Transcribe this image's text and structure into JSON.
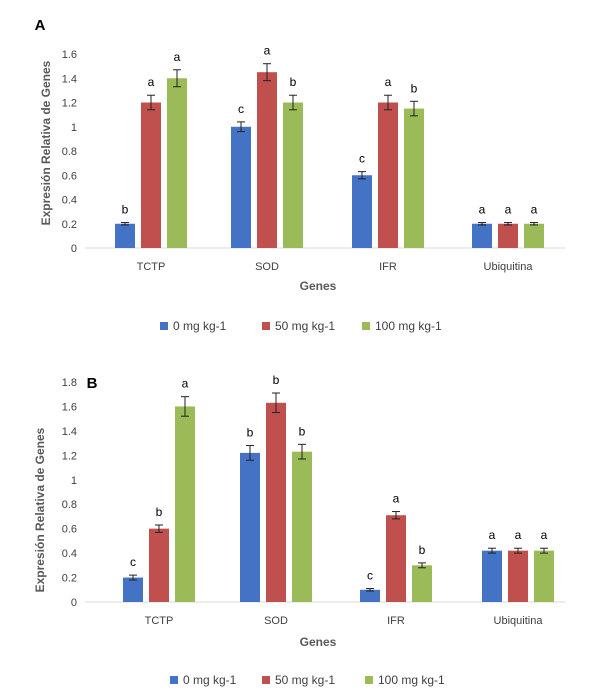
{
  "chart_data": [
    {
      "type": "bar",
      "panel_label": "A",
      "categories": [
        "TCTP",
        "SOD",
        "IFR",
        "Ubiquitina"
      ],
      "xlabel": "Genes",
      "ylabel": "Expresión Relativa de Genes",
      "ylim": [
        0,
        1.6
      ],
      "yticks": [
        "0",
        "0.2",
        "0.4",
        "0.6",
        "0.8",
        "1",
        "1.2",
        "1.4",
        "1.6"
      ],
      "grid": false,
      "legend_position": "bottom",
      "series": [
        {
          "name": "0 mg kg-1",
          "color": "#4472c4",
          "values": [
            0.2,
            1.0,
            0.6,
            0.2
          ],
          "errors": [
            0.01,
            0.04,
            0.03,
            0.01
          ],
          "letters": [
            "b",
            "c",
            "c",
            "a"
          ]
        },
        {
          "name": "50 mg kg-1",
          "color": "#c0504d",
          "values": [
            1.2,
            1.45,
            1.2,
            0.2
          ],
          "errors": [
            0.06,
            0.07,
            0.06,
            0.01
          ],
          "letters": [
            "a",
            "a",
            "a",
            "a"
          ]
        },
        {
          "name": "100 mg kg-1",
          "color": "#9bbb59",
          "values": [
            1.4,
            1.2,
            1.15,
            0.2
          ],
          "errors": [
            0.07,
            0.06,
            0.06,
            0.01
          ],
          "letters": [
            "a",
            "b",
            "b",
            "a"
          ]
        }
      ]
    },
    {
      "type": "bar",
      "panel_label": "B",
      "categories": [
        "TCTP",
        "SOD",
        "IFR",
        "Ubiquitina"
      ],
      "xlabel": "Genes",
      "ylabel": "Expresión Relativa de Genes",
      "ylim": [
        0,
        1.8
      ],
      "yticks": [
        "0",
        "0.2",
        "0.4",
        "0.6",
        "0.8",
        "1",
        "1.2",
        "1.4",
        "1.6",
        "1.8"
      ],
      "grid": false,
      "legend_position": "bottom",
      "series": [
        {
          "name": "0 mg kg-1",
          "color": "#4472c4",
          "values": [
            0.2,
            1.22,
            0.1,
            0.42
          ],
          "errors": [
            0.02,
            0.06,
            0.01,
            0.02
          ],
          "letters": [
            "c",
            "b",
            "c",
            "a"
          ]
        },
        {
          "name": "50 mg kg-1",
          "color": "#c0504d",
          "values": [
            0.6,
            1.63,
            0.71,
            0.42
          ],
          "errors": [
            0.03,
            0.08,
            0.03,
            0.02
          ],
          "letters": [
            "b",
            "b",
            "a",
            "a"
          ]
        },
        {
          "name": "100 mg kg-1",
          "color": "#9bbb59",
          "values": [
            1.6,
            1.23,
            0.3,
            0.42
          ],
          "errors": [
            0.08,
            0.06,
            0.02,
            0.02
          ],
          "letters": [
            "a",
            "b",
            "b",
            "a"
          ]
        }
      ]
    }
  ]
}
